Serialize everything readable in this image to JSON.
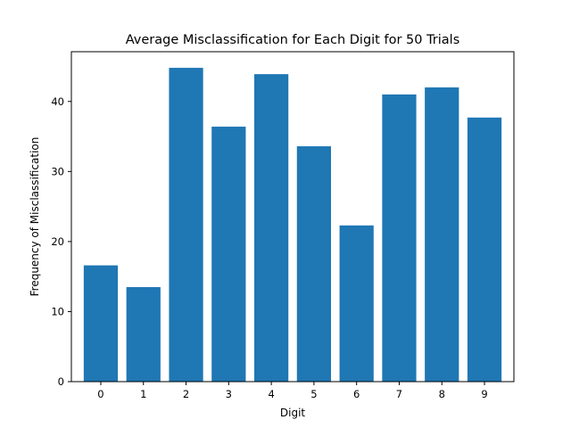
{
  "chart_data": {
    "type": "bar",
    "title": "Average Misclassification for Each Digit for 50 Trials",
    "xlabel": "Digit",
    "ylabel": "Frequency of Misclassification",
    "categories": [
      "0",
      "1",
      "2",
      "3",
      "4",
      "5",
      "6",
      "7",
      "8",
      "9"
    ],
    "values": [
      16.6,
      13.5,
      44.8,
      36.4,
      43.9,
      33.6,
      22.3,
      41.0,
      42.0,
      37.7
    ],
    "yticks": [
      "0",
      "10",
      "20",
      "30",
      "40"
    ],
    "ylim": [
      0,
      47.1
    ],
    "grid": false,
    "legend": "none",
    "bar_color": "#1f77b4",
    "axis_color": "#000000"
  }
}
